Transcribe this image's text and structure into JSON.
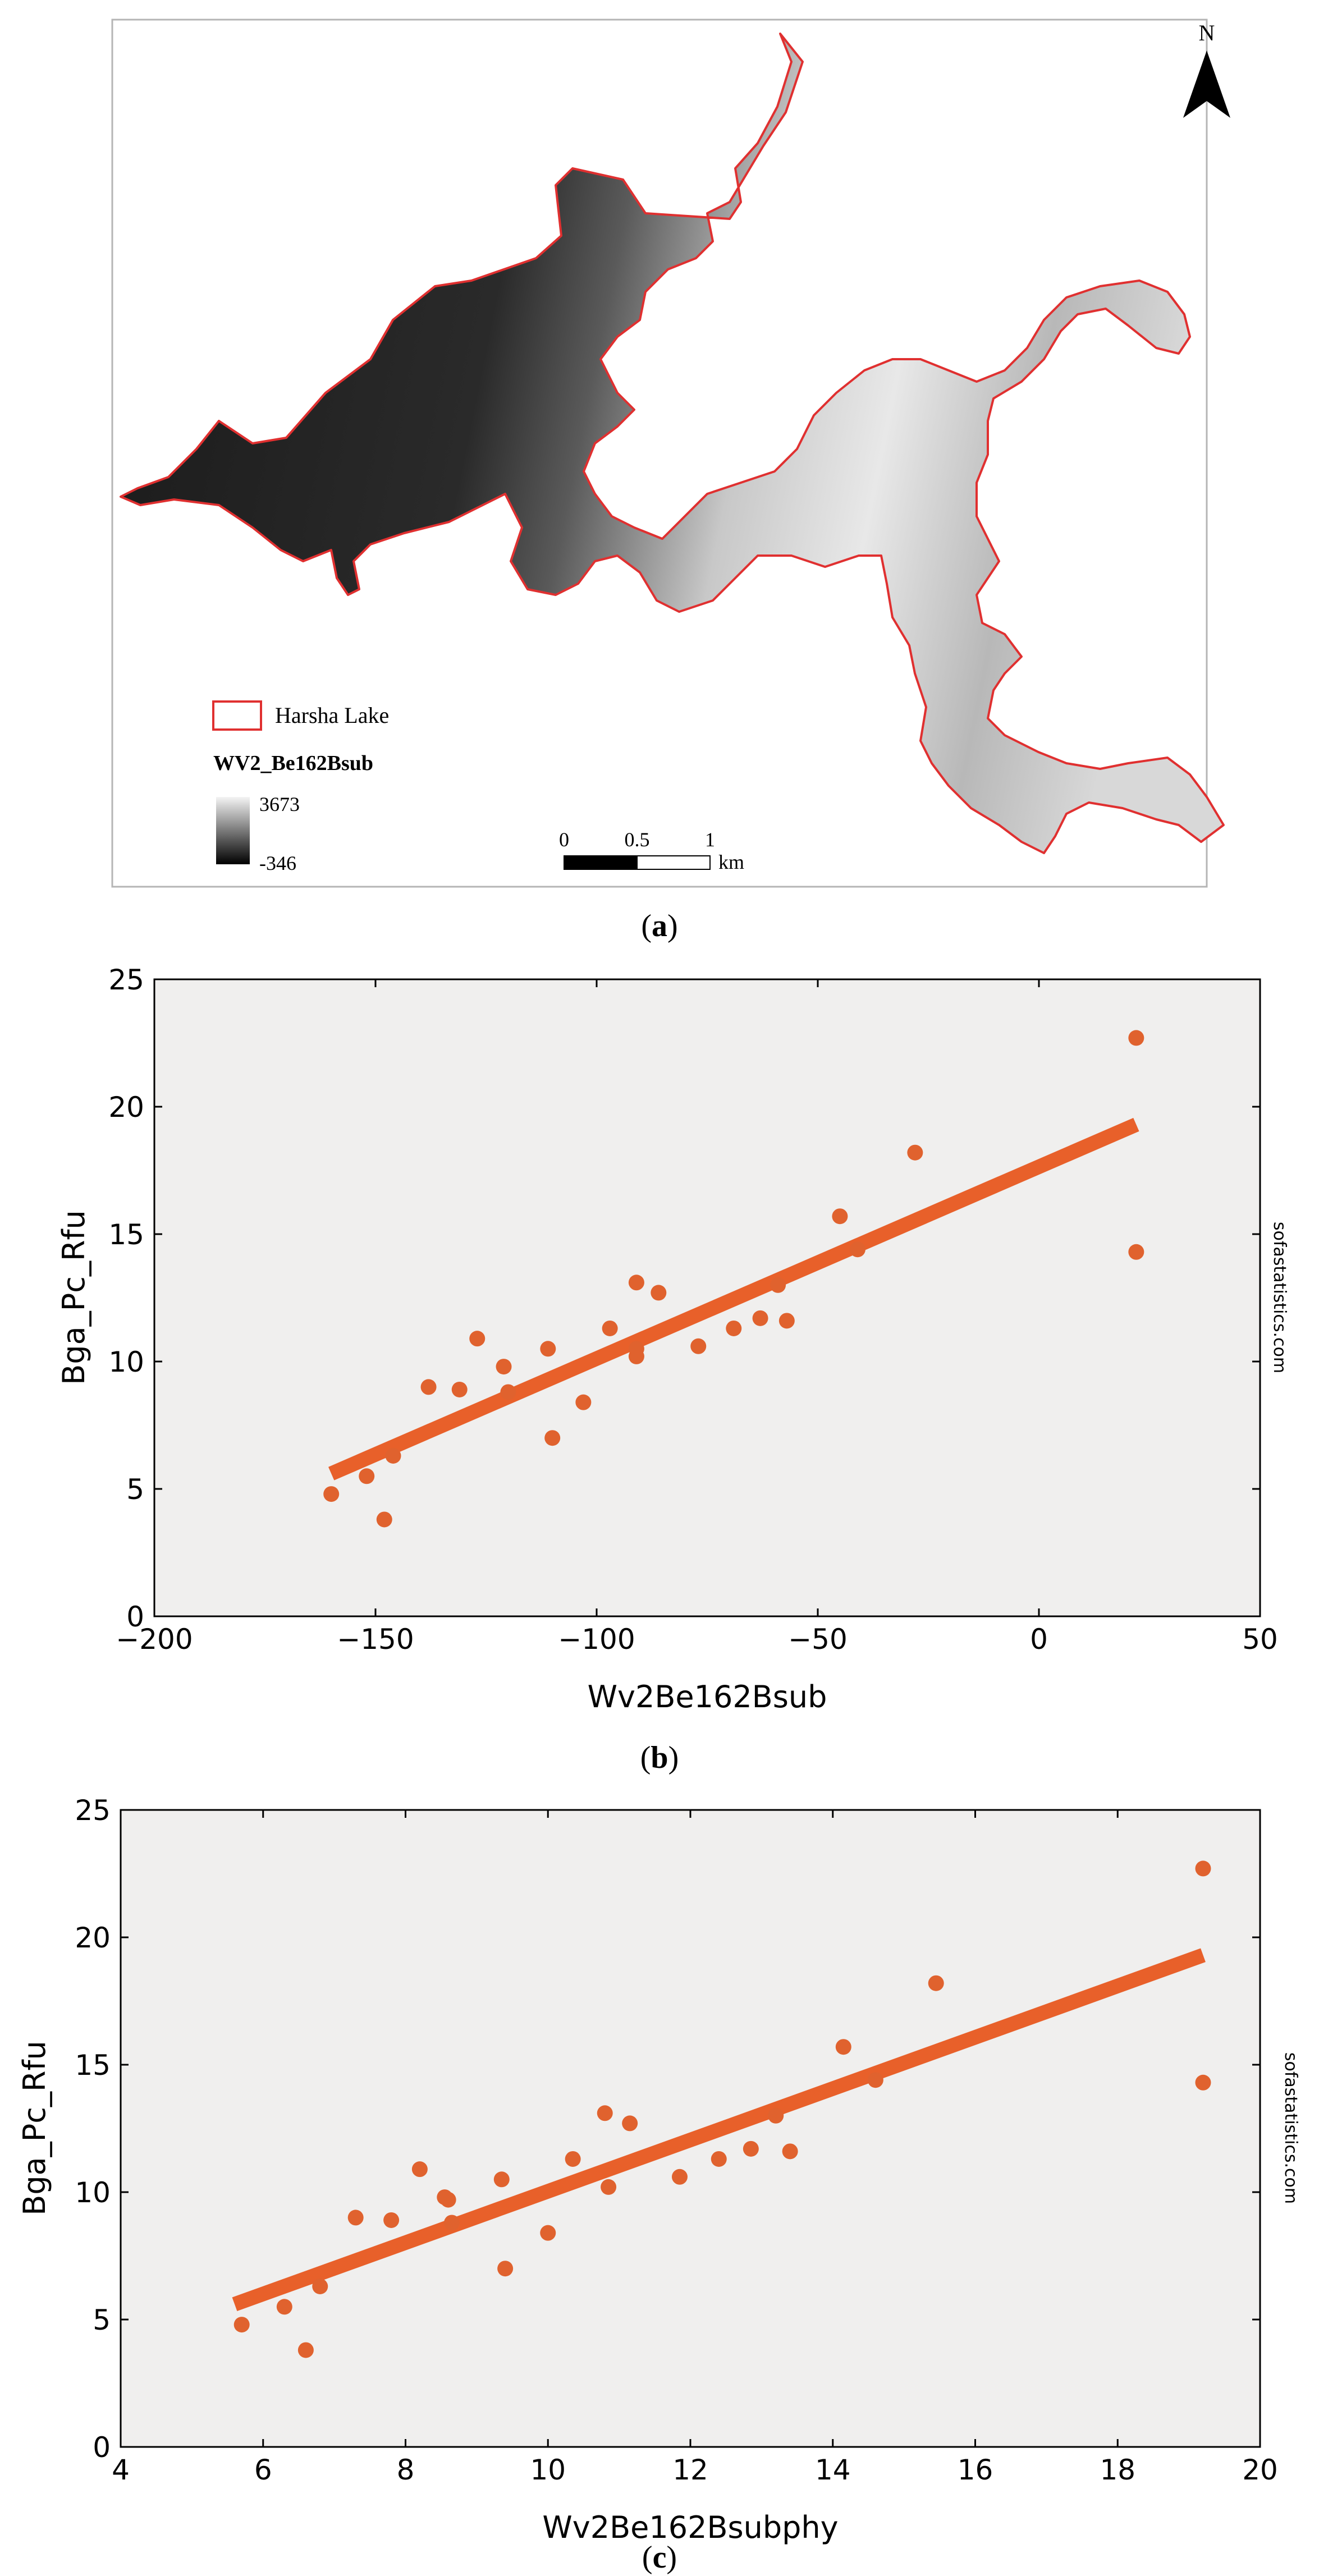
{
  "panel_a": {
    "north_label": "N",
    "legend_lake": "Harsha Lake",
    "legend_band": "WV2_Be162Bsub",
    "legend_max": "3673",
    "legend_min": "-346",
    "scale_ticks": [
      "0",
      "0.5",
      "1"
    ],
    "scale_unit": "km",
    "caption_letter": "a",
    "colors": {
      "outline": "#e03030",
      "lake_dark": "#1a1a1a",
      "lake_light": "#e6e6e6"
    }
  },
  "panel_b": {
    "caption_letter": "b",
    "watermark": "sofastatistics.com"
  },
  "panel_c": {
    "caption_letter": "c",
    "watermark": "sofastatistics.com"
  },
  "chart_data": [
    {
      "type": "scatter",
      "title": "",
      "xlabel": "Wv2Be162Bsub",
      "ylabel": "Bga_Pc_Rfu",
      "xlim": [
        -200,
        50
      ],
      "ylim": [
        0,
        25
      ],
      "xticks": [
        -200,
        -150,
        -100,
        -50,
        0,
        50
      ],
      "yticks": [
        0,
        5,
        10,
        15,
        20,
        25
      ],
      "xtick_labels": [
        "−200",
        "−150",
        "−100",
        "−50",
        "0",
        "50"
      ],
      "ytick_labels": [
        "0",
        "5",
        "10",
        "15",
        "20",
        "25"
      ],
      "grid": false,
      "series": [
        {
          "points": [
            [
              -160,
              4.8
            ],
            [
              -152,
              5.5
            ],
            [
              -148,
              3.8
            ],
            [
              -146,
              6.3
            ],
            [
              -138,
              9.0
            ],
            [
              -131,
              8.9
            ],
            [
              -127,
              10.9
            ],
            [
              -121,
              9.8
            ],
            [
              -120,
              8.8
            ],
            [
              -111,
              10.5
            ],
            [
              -110,
              7.0
            ],
            [
              -103,
              8.4
            ],
            [
              -97,
              11.3
            ],
            [
              -91,
              13.1
            ],
            [
              -91,
              10.2
            ],
            [
              -91,
              10.5
            ],
            [
              -86,
              12.7
            ],
            [
              -77,
              10.6
            ],
            [
              -69,
              11.3
            ],
            [
              -63,
              11.7
            ],
            [
              -59,
              13.0
            ],
            [
              -57,
              11.6
            ],
            [
              -45,
              15.7
            ],
            [
              -41,
              14.4
            ],
            [
              -28,
              18.2
            ],
            [
              22,
              22.7
            ],
            [
              22,
              14.3
            ]
          ]
        }
      ],
      "fit_line": {
        "x": [
          -160,
          22
        ],
        "y": [
          5.6,
          19.3
        ]
      },
      "colors": {
        "points": "#e0622e",
        "line": "#e8602a",
        "plot_bg": "#f0efee"
      }
    },
    {
      "type": "scatter",
      "title": "",
      "xlabel": "Wv2Be162Bsubphy",
      "ylabel": "Bga_Pc_Rfu",
      "xlim": [
        4,
        20
      ],
      "ylim": [
        0,
        25
      ],
      "xticks": [
        4,
        6,
        8,
        10,
        12,
        14,
        16,
        18,
        20
      ],
      "yticks": [
        0,
        5,
        10,
        15,
        20,
        25
      ],
      "xtick_labels": [
        "4",
        "6",
        "8",
        "10",
        "12",
        "14",
        "16",
        "18",
        "20"
      ],
      "ytick_labels": [
        "0",
        "5",
        "10",
        "15",
        "20",
        "25"
      ],
      "grid": false,
      "series": [
        {
          "points": [
            [
              5.7,
              4.8
            ],
            [
              6.3,
              5.5
            ],
            [
              6.6,
              3.8
            ],
            [
              6.8,
              6.3
            ],
            [
              7.3,
              9.0
            ],
            [
              7.8,
              8.9
            ],
            [
              8.2,
              10.9
            ],
            [
              8.55,
              9.8
            ],
            [
              8.6,
              9.7
            ],
            [
              8.65,
              8.8
            ],
            [
              9.35,
              10.5
            ],
            [
              9.4,
              7.0
            ],
            [
              10.0,
              8.4
            ],
            [
              10.35,
              11.3
            ],
            [
              10.8,
              13.1
            ],
            [
              10.85,
              10.2
            ],
            [
              11.15,
              12.7
            ],
            [
              11.85,
              10.6
            ],
            [
              12.4,
              11.3
            ],
            [
              12.85,
              11.7
            ],
            [
              13.2,
              13.0
            ],
            [
              13.4,
              11.6
            ],
            [
              14.15,
              15.7
            ],
            [
              14.6,
              14.4
            ],
            [
              15.45,
              18.2
            ],
            [
              19.2,
              22.7
            ],
            [
              19.2,
              14.3
            ]
          ]
        }
      ],
      "fit_line": {
        "x": [
          5.6,
          19.2
        ],
        "y": [
          5.6,
          19.3
        ]
      },
      "colors": {
        "points": "#e0622e",
        "line": "#e8602a",
        "plot_bg": "#f0efee"
      }
    }
  ]
}
